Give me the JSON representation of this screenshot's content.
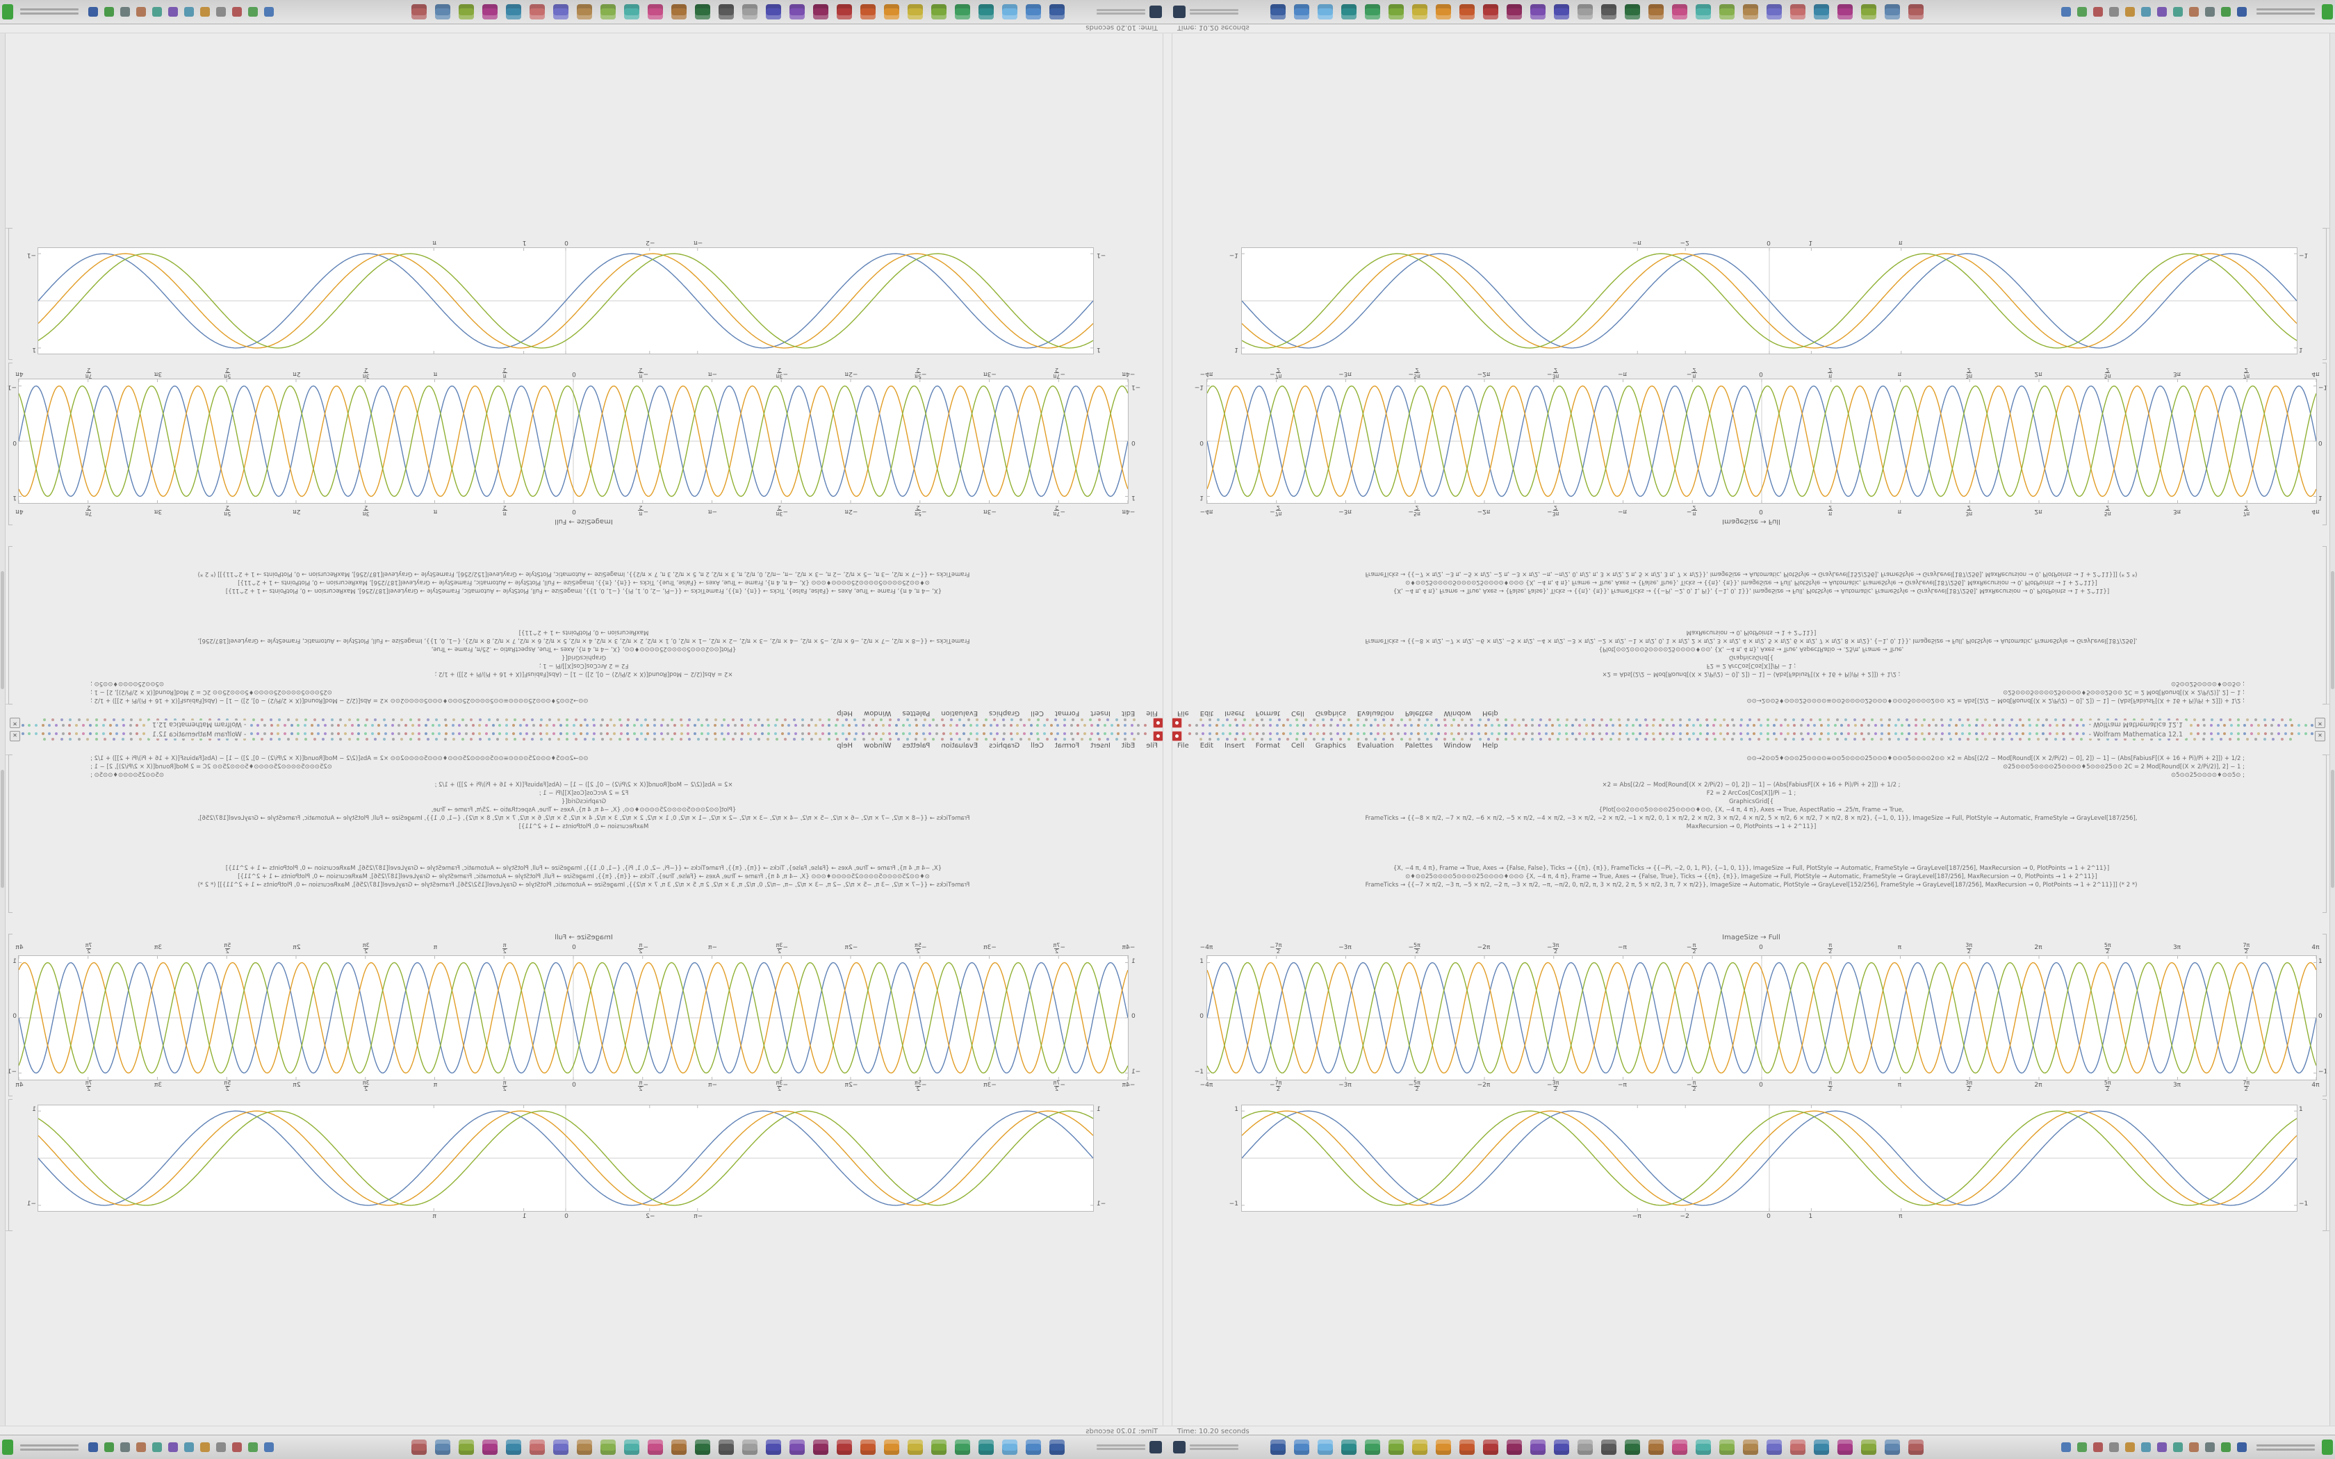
{
  "window": {
    "title": "- Wolfram Mathematica 12.1",
    "close_glyph": "✕",
    "app_icon_color": "#c23434",
    "menu": {
      "items": [
        "File",
        "Edit",
        "Insert",
        "Format",
        "Cell",
        "Graphics",
        "Evaluation",
        "Palettes",
        "Window",
        "Help"
      ]
    },
    "glyph_strips": [
      {
        "count": 168,
        "palette": [
          "#c07777",
          "#7799cc",
          "#77cc99",
          "#ccb377",
          "#9977cc",
          "#77c4cc",
          "#cc77a3",
          "#999999",
          "#bb8855",
          "#6688bb"
        ]
      },
      {
        "count": 126,
        "palette": [
          "#8a8ac0",
          "#c08a8a",
          "#8ac08a",
          "#c0b08a",
          "#9a9a9a",
          "#80b0c0"
        ]
      }
    ],
    "code_groups": [
      {
        "align": "right",
        "lines": [
          "⊙⊙→2⊙⊙5♦⊙⊙⊙25⊙⊙⊙⊙≡⊙⊙5⊙⊙⊙⊙25⊙⊙⊙♦⊙⊙⊙5⊙⊙⊙⊙2⊙⊙   ×2 = Abs[(2/2 − Mod[Round[(X × 2/Pi/2) − 0], 2]) − 1] − (Abs[FabiusF[(X + 16 + Pi)/Pi + 2]]) + 1/2 ;",
          "⊙25⊙⊙⊙5⊙⊙⊙⊙25⊙⊙⊙⊙♦5⊙⊙⊙25⊙⊙   2C = 2 Mod[Round[(X × 2/Pi/2)], 2] − 1 ;",
          "⊙5⊙⊙25⊙⊙⊙⊙♦⊙⊙5⊙ ;"
        ]
      },
      {
        "align": "center",
        "lines": [
          "×2 = Abs[(2/2 − Mod[Round[(X × 2/Pi/2) − 0], 2]) − 1] − (Abs[FabiusF[(X + 16 + Pi)/Pi + 2]]) + 1/2 ;",
          "F2 = 2 ArcCos[Cos[X]]/Pi − 1 ;",
          "GraphicsGrid[{",
          "{Plot[⊙⊙2⊙⊙⊙5⊙⊙⊙⊙25⊙⊙⊙⊙♦⊙⊙, {X, −4 π, 4 π}, Axes → True, AspectRatio → .25/π, Frame → True,",
          "FrameTicks → {{−8 × π/2, −7 × π/2, −6 × π/2, −5 × π/2, −4 × π/2, −3 × π/2, −2 × π/2, −1 × π/2, 0, 1 × π/2, 2 × π/2, 3 × π/2, 4 × π/2, 5 × π/2, 6 × π/2, 7 × π/2, 8 × π/2}, {−1, 0, 1}}, ImageSize → Full, PlotStyle → Automatic, FrameStyle → GrayLevel[187/256],",
          "MaxRecursion → 0, PlotPoints → 1 + 2^11}]"
        ]
      },
      {
        "align": "center",
        "lines": [
          "{X, −4 π, 4 π}, Frame → True, Axes → {False, False}, Ticks → {{π}, {π}}, FrameTicks → {{−Pi, −2, 0, 1, Pi}, {−1, 0, 1}}, ImageSize → Full, PlotStyle → Automatic, FrameStyle → GrayLevel[187/256], MaxRecursion → 0, PlotPoints → 1 + 2^11}]",
          "⊙♦⊙⊙25⊙⊙⊙⊙5⊙⊙⊙⊙25⊙⊙⊙⊙♦⊙⊙⊙ {X, −4 π, 4 π}, Frame → True, Axes → {False, True}, Ticks → {{π}, {π}}, ImageSize → Full, PlotStyle → Automatic, FrameStyle → GrayLevel[187/256], MaxRecursion → 0, PlotPoints → 1 + 2^11}]",
          "FrameTicks → {{−7 × π/2, −3 π, −5 × π/2, −2 π, −3 × π/2, −π, −π/2, 0, π/2, π, 3 × π/2, 2 π, 5 × π/2, 3 π, 7 × π/2}}, ImageSize → Automatic, PlotStyle → GrayLevel[152/256], FrameStyle → GrayLevel[187/256], MaxRecursion → 0, PlotPoints → 1 + 2^11}]] (* 2 *)"
        ]
      }
    ],
    "imagesize_label": "ImageSize → Full"
  },
  "chart_data": [
    {
      "type": "line",
      "title": "",
      "xmin": -12.566,
      "xmax": 12.566,
      "ylim": [
        -1.12,
        1.12
      ],
      "grid": false,
      "x_label_sides": [
        "top",
        "bottom"
      ],
      "y_label_sides": [
        "left",
        "right"
      ],
      "frame_color": "#bababa",
      "x_ticks": [
        {
          "v": -12.566,
          "label": "−4π"
        },
        {
          "v": -10.996,
          "label": "−7π/2"
        },
        {
          "v": -9.4248,
          "label": "−3π"
        },
        {
          "v": -7.854,
          "label": "−5π/2"
        },
        {
          "v": -6.2832,
          "label": "−2π"
        },
        {
          "v": -4.7124,
          "label": "−3π/2"
        },
        {
          "v": -3.1416,
          "label": "−π"
        },
        {
          "v": -1.5708,
          "label": "−π/2"
        },
        {
          "v": 0,
          "label": "0"
        },
        {
          "v": 1.5708,
          "label": "π/2"
        },
        {
          "v": 3.1416,
          "label": "π"
        },
        {
          "v": 4.7124,
          "label": "3π/2"
        },
        {
          "v": 6.2832,
          "label": "2π"
        },
        {
          "v": 7.854,
          "label": "5π/2"
        },
        {
          "v": 9.4248,
          "label": "3π"
        },
        {
          "v": 10.996,
          "label": "7π/2"
        },
        {
          "v": 12.566,
          "label": "4π"
        }
      ],
      "y_ticks": [
        {
          "v": 1,
          "label": "1"
        },
        {
          "v": 0,
          "label": "0"
        },
        {
          "v": -1,
          "label": "−1"
        }
      ],
      "series": [
        {
          "name": "blue",
          "color": "#5E81B5",
          "freq": 4,
          "phase": 0
        },
        {
          "name": "gold",
          "color": "#E19C24",
          "freq": 4,
          "phase": 2.094
        },
        {
          "name": "green",
          "color": "#8FB032",
          "freq": 4,
          "phase": -2.094
        }
      ]
    },
    {
      "type": "line",
      "title": "",
      "xmin": -12.566,
      "xmax": 12.566,
      "ylim": [
        -1.12,
        1.12
      ],
      "grid": false,
      "x_label_sides": [
        "bottom"
      ],
      "y_label_sides": [
        "left",
        "right"
      ],
      "frame_color": "#bababa",
      "x_ticks": [
        {
          "v": -3.1416,
          "label": "−π"
        },
        {
          "v": -2,
          "label": "−2"
        },
        {
          "v": 0,
          "label": "0"
        },
        {
          "v": 1,
          "label": "1"
        },
        {
          "v": 3.1416,
          "label": "π"
        }
      ],
      "y_ticks": [
        {
          "v": 1,
          "label": "1"
        },
        {
          "v": -1,
          "label": "−1"
        }
      ],
      "series": [
        {
          "name": "blue",
          "color": "#5E81B5",
          "freq": 1,
          "phase": 0
        },
        {
          "name": "gold",
          "color": "#E19C24",
          "freq": 1,
          "phase": 0.5
        },
        {
          "name": "green",
          "color": "#8FB032",
          "freq": 1,
          "phase": 1.0
        }
      ]
    }
  ],
  "desktop": {
    "bg": "#ececec",
    "status_text": "Time: 10.20 seconds",
    "taskbar": {
      "app_icon_colors": [
        "#3b5fa0",
        "#4f87c6",
        "#6fb3e0",
        "#2e8b8b",
        "#3f9e5f",
        "#7aa83c",
        "#c6b23c",
        "#d98f2e",
        "#c65a2e",
        "#b03a3a",
        "#8f2e5f",
        "#7a4fb0",
        "#4f4fb0",
        "#9e9e9e",
        "#5a5a5a",
        "#2e6e3f",
        "#a8743c",
        "#c64f87",
        "#4fb0a8",
        "#87b04f",
        "#b0874f",
        "#6e6ec6",
        "#c66e6e",
        "#3c87a8",
        "#a83c87",
        "#87a83c",
        "#5f87b0",
        "#b05f5f"
      ],
      "tray_icon_colors": [
        "#4f7ab5",
        "#58a058",
        "#b05858",
        "#8a8a8a",
        "#c09040",
        "#5898b0",
        "#7a5ab0",
        "#50a090",
        "#b07858",
        "#6e7e7e",
        "#4a9a4a",
        "#3b5fa0"
      ],
      "corner_icon_color": "#3fa23f"
    }
  }
}
